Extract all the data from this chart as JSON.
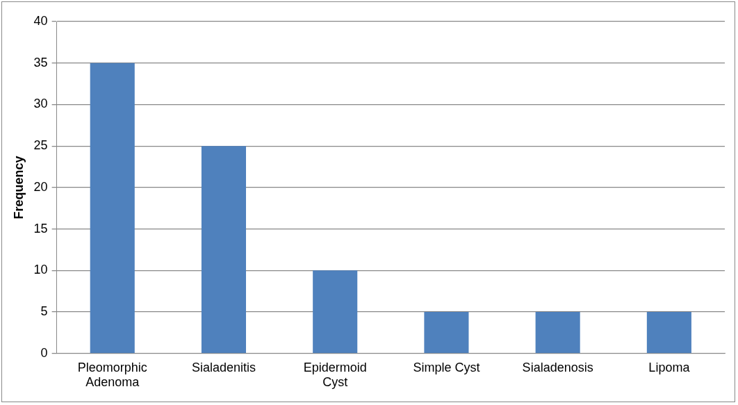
{
  "chart_data": {
    "type": "bar",
    "ylabel": "Frequency",
    "categories": [
      "Pleomorphic Adenoma",
      "Sialadenitis",
      "Epidermoid Cyst",
      "Simple Cyst",
      "Sialadenosis",
      "Lipoma"
    ],
    "values": [
      35,
      25,
      10,
      5,
      5,
      5
    ],
    "color": "#4f81bd",
    "ylim": [
      0,
      40
    ],
    "yticks": [
      0,
      5,
      10,
      15,
      20,
      25,
      30,
      35,
      40
    ],
    "grid": "y",
    "legend": false
  }
}
